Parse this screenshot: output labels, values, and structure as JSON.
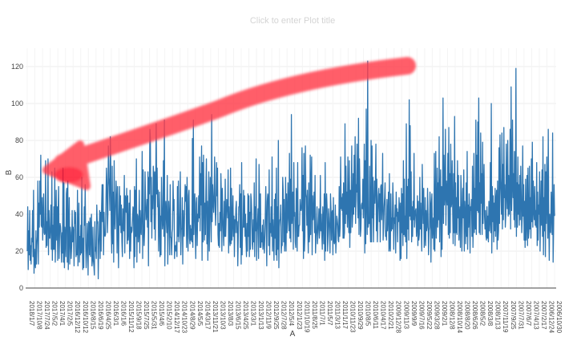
{
  "title_placeholder": "Click to enter Plot title",
  "chart_data": {
    "type": "line",
    "title": "",
    "xlabel": "A",
    "ylabel": "B",
    "ylim": [
      0,
      130
    ],
    "yticks": [
      0,
      20,
      40,
      60,
      80,
      100,
      120
    ],
    "grid": true,
    "x_order": "descending dates (newest on left)",
    "x_tick_labels": [
      "2018/1/7",
      "2017/10/8",
      "2017/7/24",
      "2017/5/2",
      "2017/4/1",
      "2017/2/5",
      "2016/12/12",
      "2016/10/12",
      "2016/8/15",
      "2016/6/19",
      "2016/4/25",
      "2016/3/1",
      "2016/1/6",
      "2015/11/12",
      "2015/9/18",
      "2015/7/25",
      "2015/5/31",
      "2015/4/6",
      "2015/2/10",
      "2014/12/17",
      "2014/10/23",
      "2014/8/29",
      "2014/5/5",
      "2014/3/17",
      "2013/11/21",
      "2013/10/3",
      "2013/8/3",
      "2013/6/15",
      "2013/4/25",
      "2013/3/1",
      "2013/1/13",
      "2012/11/9",
      "2012/9/25",
      "2012/7/28",
      "2012/5/4",
      "2012/1/23",
      "2011/10/19",
      "2011/8/25",
      "2011/7/1",
      "2011/5/7",
      "2011/3/13",
      "2011/1/17",
      "2010/11/23",
      "2010/9/29",
      "2010/8/5",
      "2010/6/11",
      "2010/4/17",
      "2010/2/21",
      "2009/12/28",
      "2009/11/3",
      "2009/9/9",
      "2009/7/16",
      "2009/5/22",
      "2009/3/28",
      "2009/2/1",
      "2008/12/8",
      "2008/10/14",
      "2008/8/20",
      "2008/6/26",
      "2008/5/2",
      "2008/3/8",
      "2008/1/13",
      "2007/11/19",
      "2007/9/25",
      "2007/7/31",
      "2007/6/7",
      "2007/4/13",
      "2007/2/17",
      "2006/12/24",
      "2006/10/30"
    ],
    "series": [
      {
        "name": "",
        "color": "#2e75b0",
        "values": [
          20,
          44,
          10,
          31,
          18,
          42,
          15,
          23,
          13,
          27,
          25,
          42,
          17,
          53,
          8,
          21,
          14,
          11,
          31,
          13,
          23,
          28,
          58,
          13,
          46,
          33,
          58,
          40,
          72,
          34,
          33,
          49,
          26,
          39,
          51,
          30,
          29,
          30,
          69,
          22,
          36,
          23,
          39,
          70,
          18,
          42,
          27,
          27,
          34,
          45,
          21,
          63,
          15,
          34,
          21,
          44,
          21,
          65,
          14,
          33,
          53,
          26,
          44,
          15,
          42,
          55,
          16,
          30,
          35,
          33,
          26,
          14,
          30,
          19,
          65,
          14,
          57,
          11,
          33,
          28,
          17,
          51,
          54,
          14,
          58,
          10,
          33,
          49,
          13,
          33,
          30,
          16,
          23,
          42,
          25,
          33,
          30,
          12,
          42,
          35,
          41,
          17,
          20,
          18,
          53,
          12,
          29,
          46,
          14,
          28,
          18,
          34,
          19,
          60,
          24,
          10,
          27,
          11,
          44,
          34,
          56,
          25,
          11,
          19,
          35,
          25,
          7,
          36,
          35,
          18,
          38,
          17,
          34,
          40,
          12,
          15,
          33,
          15,
          12,
          7,
          36,
          20,
          22,
          16,
          45,
          35,
          36,
          5,
          23,
          30,
          42,
          16,
          41,
          20,
          44,
          56,
          36,
          56,
          18,
          41,
          29,
          28,
          29,
          47,
          65,
          57,
          30,
          40,
          77,
          60,
          55,
          42,
          82,
          66,
          30,
          19,
          66,
          24,
          52,
          14,
          69,
          38,
          32,
          45,
          58,
          48,
          19,
          55,
          34,
          11,
          38,
          55,
          34,
          50,
          30,
          45,
          25,
          17,
          43,
          35,
          31,
          61,
          19,
          50,
          48,
          41,
          54,
          24,
          50,
          26,
          31,
          46,
          16,
          53,
          20,
          33,
          30,
          31,
          37,
          44,
          43,
          11,
          55,
          17,
          53,
          28,
          70,
          14,
          40,
          39,
          25,
          30,
          53,
          19,
          42,
          32,
          29,
          43,
          74,
          16,
          64,
          31,
          23,
          31,
          63,
          47,
          37,
          40,
          48,
          33,
          63,
          12,
          60,
          51,
          86,
          81,
          36,
          60,
          27,
          50,
          43,
          66,
          61,
          32,
          63,
          26,
          52,
          89,
          51,
          65,
          44,
          53,
          20,
          36,
          52,
          17,
          39,
          18,
          60,
          44,
          32,
          35,
          69,
          28,
          91,
          12,
          43,
          47,
          37,
          30,
          61,
          13,
          33,
          47,
          38,
          18,
          56,
          28,
          27,
          18,
          30,
          32,
          58,
          42,
          48,
          16,
          22,
          23,
          20,
          25,
          17,
          55,
          28,
          58,
          25,
          30,
          41,
          63,
          18,
          32,
          32,
          49,
          13,
          42,
          32,
          28,
          46,
          56,
          47,
          55,
          22,
          60,
          34,
          20,
          50,
          53,
          27,
          24,
          34,
          26,
          32,
          25,
          81,
          22,
          91,
          29,
          42,
          51,
          30,
          16,
          46,
          49,
          23,
          40,
          36,
          50,
          38,
          71,
          31,
          62,
          45,
          77,
          15,
          68,
          25,
          72,
          48,
          26,
          46,
          29,
          54,
          70,
          24,
          47,
          15,
          36,
          63,
          20,
          38,
          60,
          42,
          25,
          94,
          36,
          56,
          48,
          41,
          50,
          71,
          44,
          34,
          45,
          68,
          50,
          65,
          29,
          23,
          35,
          22,
          41,
          31,
          62,
          50,
          20,
          54,
          40,
          30,
          23,
          47,
          28,
          59,
          28,
          38,
          48,
          46,
          38,
          64,
          19,
          44,
          27,
          23,
          65,
          24,
          54,
          26,
          36,
          50,
          28,
          39,
          17,
          37,
          30,
          43,
          47,
          30,
          36,
          12,
          27,
          44,
          44,
          56,
          22,
          51,
          13,
          68,
          18,
          33,
          33,
          53,
          33,
          50,
          28,
          40,
          26,
          17,
          35,
          20,
          51,
          28,
          50,
          17,
          41,
          21,
          51,
          48,
          40,
          24,
          21,
          37,
          25,
          57,
          17,
          44,
          31,
          70,
          15,
          31,
          36,
          43,
          16,
          67,
          48,
          22,
          51,
          22,
          30,
          25,
          34,
          21,
          37,
          25,
          19,
          28,
          39,
          55,
          33,
          12,
          47,
          51,
          49,
          23,
          64,
          18,
          35,
          30,
          44,
          28,
          71,
          20,
          37,
          27,
          15,
          48,
          27,
          51,
          18,
          65,
          15,
          44,
          21,
          80,
          11,
          33,
          37,
          37,
          45,
          19,
          24,
          23,
          60,
          53,
          25,
          48,
          20,
          26,
          60,
          20,
          51,
          30,
          40,
          57,
          37,
          31,
          73,
          27,
          59,
          25,
          94,
          35,
          41,
          52,
          21,
          68,
          39,
          41,
          25,
          22,
          54,
          51,
          20,
          68,
          28,
          28,
          34,
          34,
          48,
          44,
          42,
          44,
          76,
          31,
          61,
          16,
          73,
          20,
          28,
          77,
          51,
          49,
          34,
          53,
          33,
          19,
          57,
          25,
          29,
          72,
          29,
          57,
          71,
          18,
          50,
          37,
          40,
          52,
          30,
          61,
          19,
          28,
          32,
          44,
          24,
          29,
          35,
          43,
          27,
          33,
          61,
          31,
          40,
          29,
          21,
          44,
          37,
          24,
          51,
          15,
          68,
          20,
          44,
          51,
          43,
          20,
          29,
          43,
          38,
          29,
          19,
          51,
          43,
          26,
          41,
          42,
          18,
          49,
          26,
          24,
          25,
          45,
          19,
          27,
          39,
          37,
          34,
          26,
          25,
          55,
          28,
          33,
          71,
          43,
          49,
          42,
          51,
          27,
          57,
          27,
          30,
          89,
          35,
          66,
          40,
          52,
          33,
          71,
          42,
          30,
          69,
          22,
          53,
          30,
          49,
          77,
          33,
          40,
          62,
          40,
          72,
          44,
          82,
          35,
          56,
          52,
          78,
          48,
          38,
          92,
          29,
          70,
          53,
          28,
          32,
          45,
          46,
          43,
          59,
          38,
          53,
          78,
          19,
          69,
          24,
          97,
          49,
          29,
          123,
          33,
          36,
          35,
          66,
          36,
          25,
          80,
          25,
          77,
          38,
          60,
          25,
          43,
          58,
          46,
          56,
          78,
          31,
          59,
          25,
          40,
          50,
          54,
          36,
          51,
          25,
          55,
          56,
          37,
          46,
          73,
          26,
          33,
          44,
          49,
          57,
          28,
          31,
          26,
          48,
          31,
          40,
          52,
          20,
          62,
          22,
          20,
          51,
          31,
          38,
          32,
          57,
          46,
          21,
          38,
          35,
          45,
          19,
          52,
          39,
          43,
          25,
          41,
          36,
          49,
          43,
          15,
          46,
          16,
          54,
          30,
          51,
          23,
          69,
          29,
          59,
          28,
          39,
          25,
          89,
          16,
          55,
          32,
          59,
          26,
          102,
          39,
          88,
          37,
          63,
          25,
          44,
          28,
          47,
          37,
          73,
          33,
          39,
          42,
          43,
          28,
          33,
          50,
          23,
          47,
          26,
          29,
          60,
          32,
          46,
          33,
          20,
          67,
          47,
          35,
          54,
          22,
          28,
          49,
          23,
          42,
          31,
          33,
          54,
          39,
          18,
          31,
          33,
          52,
          46,
          14,
          45,
          51,
          27,
          34,
          38,
          21,
          73,
          20,
          40,
          74,
          27,
          38,
          65,
          33,
          57,
          37,
          82,
          25,
          51,
          64,
          17,
          55,
          21,
          46,
          103,
          35,
          72,
          45,
          50,
          86,
          34,
          58,
          51,
          45,
          73,
          29,
          87,
          27,
          62,
          30,
          78,
          44,
          46,
          69,
          42,
          24,
          62,
          30,
          93,
          23,
          57,
          30,
          49,
          29,
          69,
          38,
          61,
          26,
          39,
          44,
          22,
          61,
          52,
          20,
          39,
          54,
          38,
          64,
          20,
          47,
          39,
          24,
          57,
          28,
          74,
          21,
          45,
          33,
          51,
          43,
          19,
          44,
          42,
          48,
          28,
          66,
          22,
          39,
          73,
          30,
          54,
          32,
          91,
          29,
          72,
          42,
          90,
          41,
          103,
          30,
          57,
          29,
          84,
          46,
          62,
          29,
          79,
          35,
          53,
          67,
          39,
          32,
          42,
          28,
          26,
          44,
          27,
          39,
          25,
          47,
          31,
          36,
          68,
          30,
          100,
          19,
          55,
          36,
          50,
          25,
          46,
          31,
          54,
          28,
          48,
          53,
          21,
          58,
          26,
          31,
          76,
          35,
          83,
          59,
          50,
          40,
          84,
          32,
          67,
          37,
          87,
          49,
          56,
          33,
          40,
          78,
          51,
          43,
          80,
          39,
          61,
          40,
          51,
          86,
          32,
          109,
          42,
          56,
          91,
          49,
          62,
          37,
          74,
          33,
          46,
          119,
          28,
          57,
          33,
          71,
          40,
          56,
          34,
          61,
          37,
          66,
          50,
          30,
          38,
          77,
          39,
          56,
          26,
          47,
          22,
          59,
          26,
          36,
          61,
          23,
          65,
          27,
          31,
          66,
          32,
          49,
          27,
          70,
          36,
          79,
          33,
          58,
          42,
          37,
          55,
          34,
          42,
          33,
          68,
          23,
          52,
          26,
          45,
          40,
          63,
          20,
          40,
          58,
          34,
          64,
          28,
          82,
          18,
          49,
          31,
          67,
          17,
          63,
          35,
          71,
          46,
          27,
          86,
          37,
          15,
          40,
          33,
          30,
          52,
          40,
          29,
          84,
          14,
          33,
          56,
          39
        ]
      }
    ]
  }
}
